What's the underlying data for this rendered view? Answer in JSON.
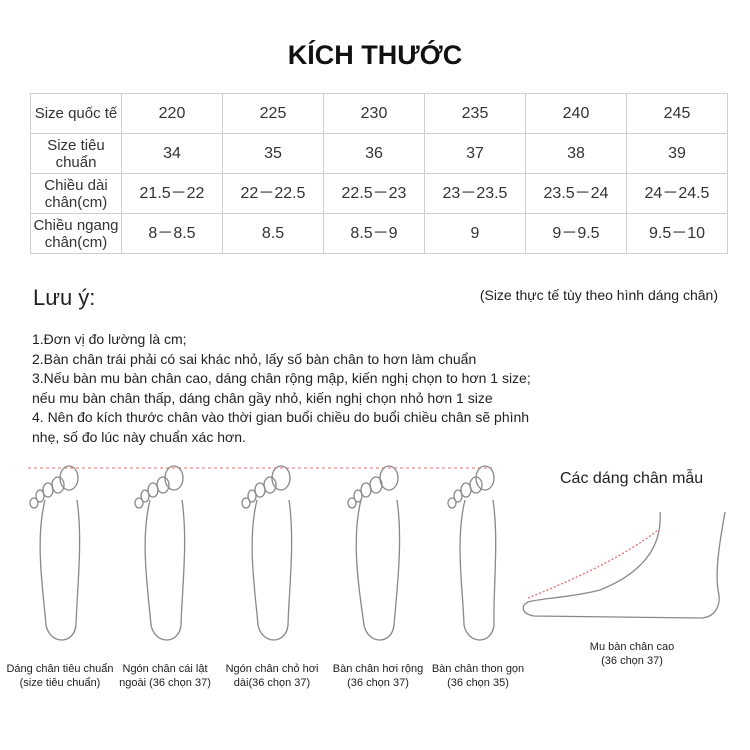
{
  "title": "KÍCH THƯỚC",
  "table": {
    "rows": [
      {
        "label": "Size quốc tế",
        "values": [
          "220",
          "225",
          "230",
          "235",
          "240",
          "245"
        ]
      },
      {
        "label": "Size tiêu chuẩn",
        "values": [
          "34",
          "35",
          "36",
          "37",
          "38",
          "39"
        ]
      },
      {
        "label": "Chiều dài chân(cm)",
        "values": [
          "21.5－22",
          "22－22.5",
          "22.5－23",
          "23－23.5",
          "23.5－24",
          "24－24.5"
        ]
      },
      {
        "label": "Chiều ngang chân(cm)",
        "values": [
          "8－8.5",
          "8.5",
          "8.5－9",
          "9",
          "9－9.5",
          "9.5－10"
        ]
      }
    ]
  },
  "notes": {
    "title": "Lưu ý:",
    "subtitle": "(Size thực tế tùy theo hình dáng chân)",
    "lines": [
      "1.Đơn vị đo lường là cm;",
      "2.Bàn chân trái phải có sai khác nhỏ, lấy số bàn chân to hơn làm chuẩn",
      "3.Nếu bàn mu bàn chân cao, dáng chân rộng mập, kiến nghị chọn to hơn 1 size;",
      "nếu mu bàn chân thấp, dáng chân gầy nhỏ, kiến nghị chọn nhỏ hơn 1 size",
      "4. Nên đo kích thước chân vào thời gian buổi chiều do buổi chiều chân sẽ phình",
      "nhẹ, số đo lúc này chuẩn xác hơn."
    ]
  },
  "feet": {
    "title": "Các dáng chân mẫu",
    "captions": [
      [
        "Dáng chân tiêu chuẩn",
        "(size tiêu chuẩn)"
      ],
      [
        "Ngón chân cái lật",
        "ngoài (36 chọn 37)"
      ],
      [
        "Ngón chân chỏ hơi",
        "dài(36 chọn 37)"
      ],
      [
        "Bàn chân hơi rộng",
        "(36 chọn 37)"
      ],
      [
        "Bàn chân thon gọn",
        "(36 chọn 35)"
      ],
      [
        "Mu bàn chân cao",
        "(36 chọn 37)"
      ]
    ],
    "guide_color": "#e07070"
  }
}
